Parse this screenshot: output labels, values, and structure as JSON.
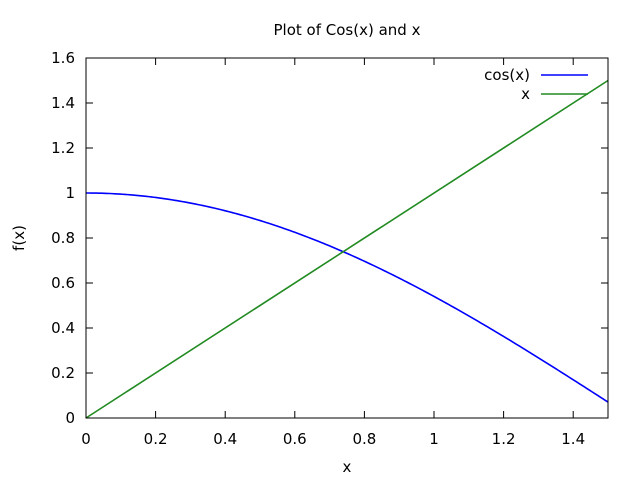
{
  "chart_data": {
    "type": "line",
    "title": "Plot of Cos(x) and x",
    "xlabel": "x",
    "ylabel": "f(x)",
    "xlim": [
      0,
      1.5
    ],
    "ylim": [
      0,
      1.6
    ],
    "xticks": [
      0,
      0.2,
      0.4,
      0.6,
      0.8,
      1,
      1.2,
      1.4
    ],
    "xtick_labels": [
      "0",
      "0.2",
      "0.4",
      "0.6",
      "0.8",
      "1",
      "1.2",
      "1.4"
    ],
    "yticks": [
      0,
      0.2,
      0.4,
      0.6,
      0.8,
      1,
      1.2,
      1.4,
      1.6
    ],
    "ytick_labels": [
      "0",
      "0.2",
      "0.4",
      "0.6",
      "0.8",
      "1",
      "1.2",
      "1.4",
      "1.6"
    ],
    "grid": false,
    "legend_position": "top-right",
    "series": [
      {
        "name": "cos(x)",
        "color": "#0000ff",
        "x": [
          0,
          0.1,
          0.2,
          0.3,
          0.4,
          0.5,
          0.6,
          0.7,
          0.8,
          0.9,
          1.0,
          1.1,
          1.2,
          1.3,
          1.4,
          1.5
        ],
        "y": [
          1.0,
          0.995,
          0.98,
          0.955,
          0.921,
          0.878,
          0.825,
          0.765,
          0.697,
          0.622,
          0.54,
          0.454,
          0.362,
          0.267,
          0.17,
          0.071
        ]
      },
      {
        "name": "x",
        "color": "#228b22",
        "x": [
          0,
          1.5
        ],
        "y": [
          0,
          1.5
        ]
      }
    ]
  }
}
